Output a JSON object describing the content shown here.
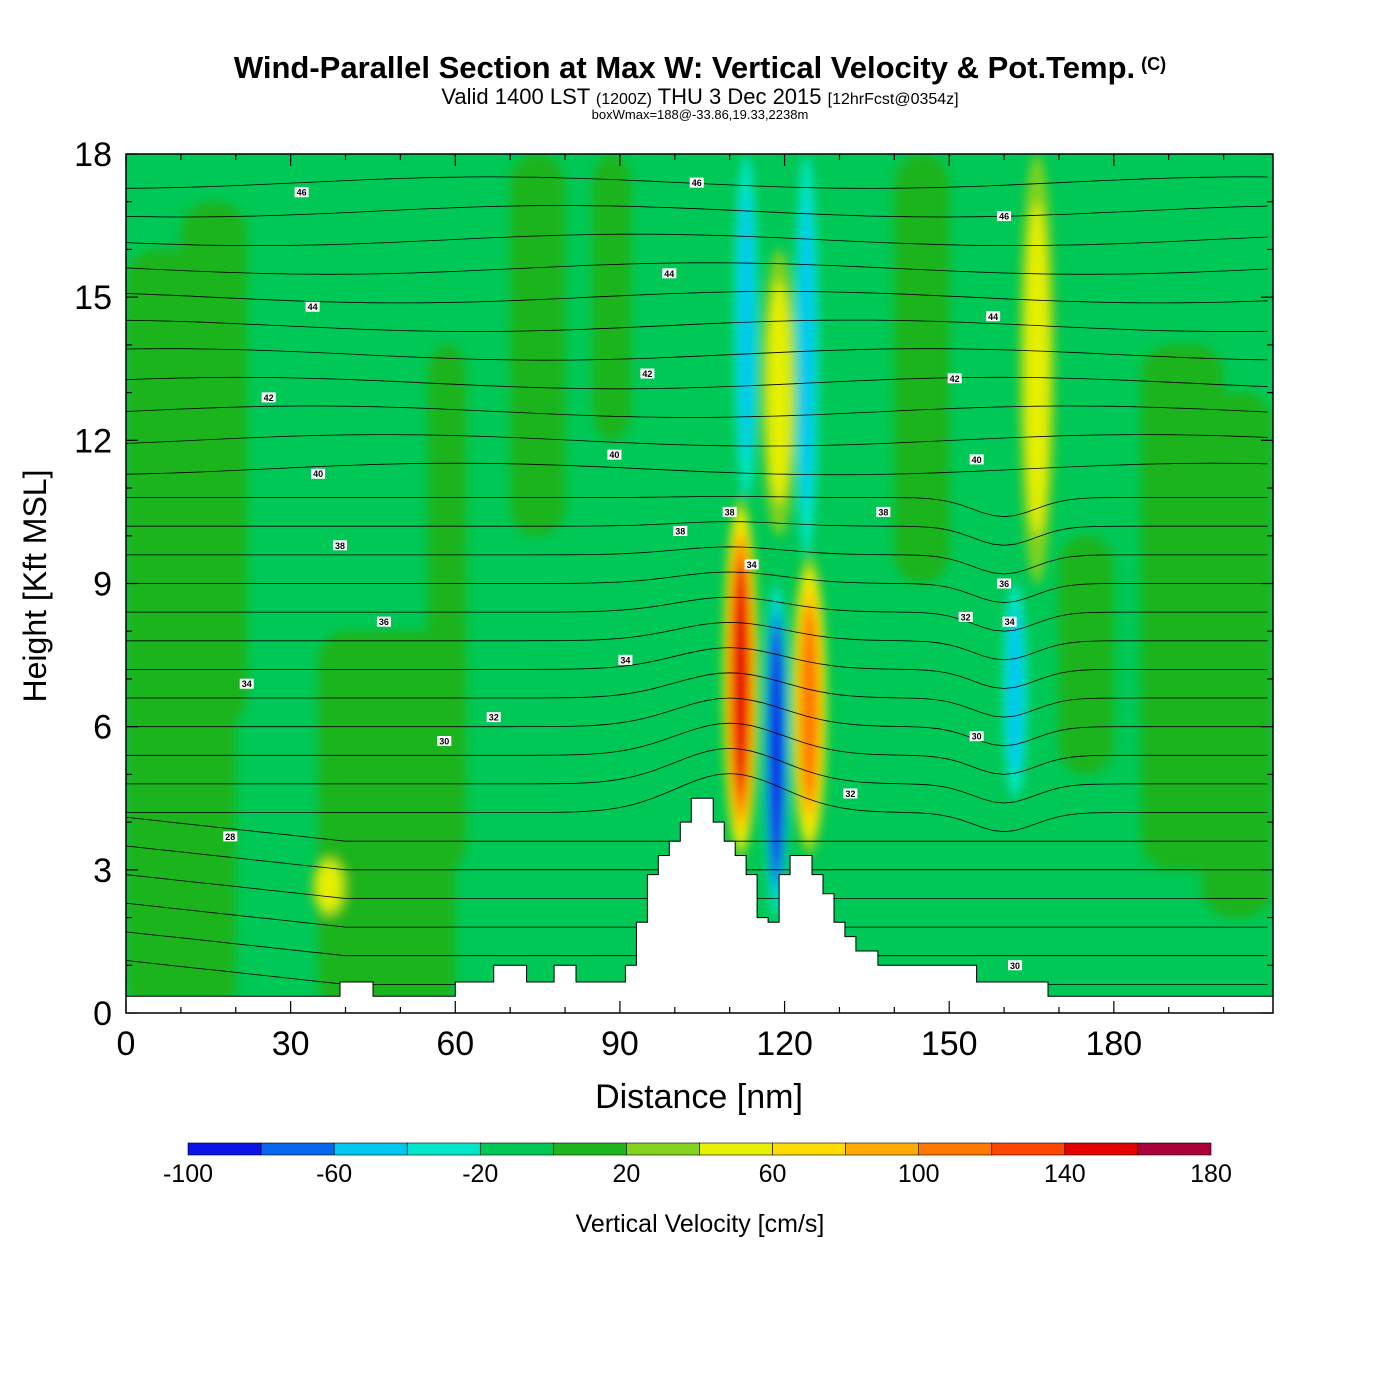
{
  "title": "Wind-Parallel Section at Max W: Vertical Velocity & Pot.Temp.",
  "copyright": "(C)",
  "subtitle": {
    "valid_prefix": "Valid 1400 LST",
    "zulu": "(1200Z)",
    "date": "THU 3 Dec 2015",
    "forecast": "[12hrFcst@0354z]"
  },
  "box_info": "boxWmax=188@-33.86,19.33,2238m",
  "colors": {
    "neg100": "#0a14e6",
    "neg80": "#0a64f0",
    "neg60": "#00c8f0",
    "neg40": "#00e6c8",
    "neg20": "#00c856",
    "zero": "#1eb41e",
    "pos20": "#82d21e",
    "pos40": "#e6f000",
    "pos60": "#ffdc00",
    "pos80": "#ffaa00",
    "pos100": "#ff7800",
    "pos120": "#ff4600",
    "pos140": "#e60000",
    "pos160": "#aa003c",
    "terrain": "#ffffff"
  },
  "chart_data": {
    "type": "heatmap",
    "xlabel": "Distance [nm]",
    "ylabel": "Height [Kft MSL]",
    "xlim": [
      0,
      209
    ],
    "ylim": [
      0,
      18
    ],
    "xticks": [
      0,
      30,
      60,
      90,
      120,
      150,
      180
    ],
    "yticks": [
      0,
      3,
      6,
      9,
      12,
      15,
      18
    ],
    "field": "Vertical Velocity [cm/s]",
    "colorbar": {
      "label": "Vertical Velocity [cm/s]",
      "min": -100,
      "max": 180,
      "step": 20,
      "tick_labels": [
        "-100",
        "-60",
        "-20",
        "20",
        "60",
        "100",
        "140",
        "180"
      ]
    },
    "terrain_profile": [
      [
        0,
        0.35
      ],
      [
        39,
        0.35
      ],
      [
        39,
        0.65
      ],
      [
        45,
        0.65
      ],
      [
        45,
        0.35
      ],
      [
        60,
        0.35
      ],
      [
        60,
        0.65
      ],
      [
        67,
        0.65
      ],
      [
        67,
        1.0
      ],
      [
        73,
        1.0
      ],
      [
        73,
        0.65
      ],
      [
        78,
        0.65
      ],
      [
        78,
        1.0
      ],
      [
        82,
        1.0
      ],
      [
        82,
        0.65
      ],
      [
        91,
        0.65
      ],
      [
        91,
        1.0
      ],
      [
        93,
        1.0
      ],
      [
        93,
        1.9
      ],
      [
        95,
        1.9
      ],
      [
        95,
        2.9
      ],
      [
        97,
        2.9
      ],
      [
        97,
        3.3
      ],
      [
        99,
        3.3
      ],
      [
        99,
        3.6
      ],
      [
        101,
        3.6
      ],
      [
        101,
        4.0
      ],
      [
        103,
        4.0
      ],
      [
        103,
        4.5
      ],
      [
        107,
        4.5
      ],
      [
        107,
        4.0
      ],
      [
        109,
        4.0
      ],
      [
        109,
        3.6
      ],
      [
        111,
        3.6
      ],
      [
        111,
        3.3
      ],
      [
        113,
        3.3
      ],
      [
        113,
        2.9
      ],
      [
        115,
        2.9
      ],
      [
        115,
        2.0
      ],
      [
        117,
        2.0
      ],
      [
        117,
        1.9
      ],
      [
        119,
        1.9
      ],
      [
        119,
        2.9
      ],
      [
        121,
        2.9
      ],
      [
        121,
        3.3
      ],
      [
        125,
        3.3
      ],
      [
        125,
        2.9
      ],
      [
        127,
        2.9
      ],
      [
        127,
        2.5
      ],
      [
        129,
        2.5
      ],
      [
        129,
        1.9
      ],
      [
        131,
        1.9
      ],
      [
        131,
        1.6
      ],
      [
        133,
        1.6
      ],
      [
        133,
        1.3
      ],
      [
        137,
        1.3
      ],
      [
        137,
        1.0
      ],
      [
        155,
        1.0
      ],
      [
        155,
        0.65
      ],
      [
        168,
        0.65
      ],
      [
        168,
        0.35
      ],
      [
        209,
        0.35
      ]
    ],
    "vertical_velocity_features": [
      {
        "x": 112,
        "y_range": [
          3.2,
          10.8
        ],
        "peak": 140,
        "sign": "updraft"
      },
      {
        "x": 118.5,
        "y_range": [
          2.0,
          9.0
        ],
        "peak": -100,
        "sign": "downdraft"
      },
      {
        "x": 124.5,
        "y_range": [
          3.3,
          9.6
        ],
        "peak": 100,
        "sign": "updraft"
      },
      {
        "x": 113,
        "y_range": [
          10.8,
          18
        ],
        "peak": -40,
        "sign": "downdraft"
      },
      {
        "x": 124,
        "y_range": [
          9.6,
          18
        ],
        "peak": -40,
        "sign": "downdraft"
      },
      {
        "x": 119,
        "y_range": [
          10,
          16
        ],
        "peak": 30,
        "sign": "updraft"
      },
      {
        "x": 166,
        "y_range": [
          9,
          18
        ],
        "peak": 30,
        "sign": "updraft"
      },
      {
        "x": 162,
        "y_range": [
          4.5,
          9
        ],
        "peak": -30,
        "sign": "downdraft"
      },
      {
        "x": 37,
        "y_range": [
          2.0,
          3.3
        ],
        "peak": 30,
        "sign": "updraft"
      }
    ],
    "pot_temp_contour_labels": [
      {
        "value": "46",
        "x": 32,
        "y": 17.2
      },
      {
        "value": "46",
        "x": 104,
        "y": 17.4
      },
      {
        "value": "46",
        "x": 160,
        "y": 16.7
      },
      {
        "value": "44",
        "x": 34,
        "y": 14.8
      },
      {
        "value": "44",
        "x": 99,
        "y": 15.5
      },
      {
        "value": "44",
        "x": 158,
        "y": 14.6
      },
      {
        "value": "42",
        "x": 26,
        "y": 12.9
      },
      {
        "value": "42",
        "x": 95,
        "y": 13.4
      },
      {
        "value": "42",
        "x": 151,
        "y": 13.3
      },
      {
        "value": "40",
        "x": 35,
        "y": 11.3
      },
      {
        "value": "40",
        "x": 89,
        "y": 11.7
      },
      {
        "value": "40",
        "x": 155,
        "y": 11.6
      },
      {
        "value": "38",
        "x": 39,
        "y": 9.8
      },
      {
        "value": "38",
        "x": 101,
        "y": 10.1
      },
      {
        "value": "38",
        "x": 110,
        "y": 10.5
      },
      {
        "value": "38",
        "x": 138,
        "y": 10.5
      },
      {
        "value": "36",
        "x": 47,
        "y": 8.2
      },
      {
        "value": "36",
        "x": 160,
        "y": 9.0
      },
      {
        "value": "34",
        "x": 22,
        "y": 6.9
      },
      {
        "value": "34",
        "x": 91,
        "y": 7.4
      },
      {
        "value": "34",
        "x": 114,
        "y": 9.4
      },
      {
        "value": "34",
        "x": 161,
        "y": 8.2
      },
      {
        "value": "32",
        "x": 67,
        "y": 6.2
      },
      {
        "value": "32",
        "x": 132,
        "y": 4.6
      },
      {
        "value": "32",
        "x": 153,
        "y": 8.3
      },
      {
        "value": "30",
        "x": 58,
        "y": 5.7
      },
      {
        "value": "30",
        "x": 155,
        "y": 5.8
      },
      {
        "value": "30",
        "x": 162,
        "y": 1.0
      },
      {
        "value": "28",
        "x": 19,
        "y": 3.7
      }
    ]
  }
}
